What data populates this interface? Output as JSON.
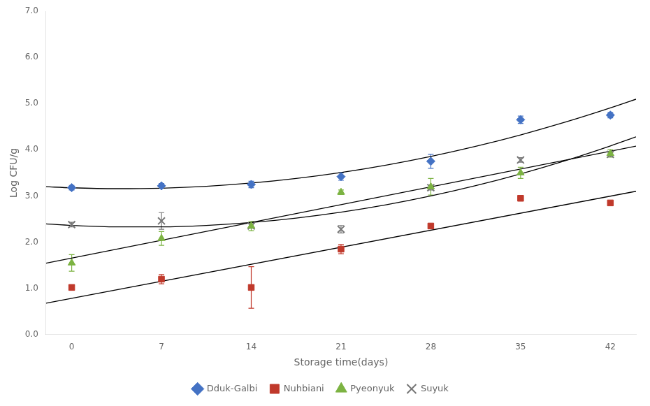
{
  "chart_data": {
    "type": "scatter",
    "xlabel": "Storage time(days)",
    "ylabel": "Log CFU/g",
    "xlim": [
      -2,
      44
    ],
    "xticks": [
      0,
      7,
      14,
      21,
      28,
      35,
      42
    ],
    "ylim": [
      0.0,
      7.0
    ],
    "yticks": [
      {
        "value": 0,
        "label": "0.0"
      },
      {
        "value": 1,
        "label": "1.0"
      },
      {
        "value": 2,
        "label": "2.0"
      },
      {
        "value": 3,
        "label": "3.0"
      },
      {
        "value": 4,
        "label": "4.0"
      },
      {
        "value": 5,
        "label": "5.0"
      },
      {
        "value": 6,
        "label": "6.0"
      },
      {
        "value": 7,
        "label": "7.0"
      }
    ],
    "grid": false,
    "legend": "bottom",
    "series": [
      {
        "type": "line",
        "color": "#000000",
        "x": [
          -2,
          0,
          3.5,
          7,
          10.5,
          14,
          17.5,
          21,
          24.5,
          28,
          31.5,
          35,
          38.5,
          42,
          44
        ],
        "values": [
          3.201,
          3.177,
          3.158,
          3.169,
          3.21,
          3.28,
          3.38,
          3.509,
          3.668,
          3.856,
          4.074,
          4.322,
          4.599,
          4.906,
          5.095
        ]
      },
      {
        "type": "line",
        "color": "#000000",
        "x": [
          -2,
          44
        ],
        "values": [
          0.68,
          3.102
        ]
      },
      {
        "type": "line",
        "color": "#000000",
        "x": [
          -2,
          44
        ],
        "values": [
          1.544,
          4.079
        ]
      },
      {
        "type": "line",
        "color": "#000000",
        "x": [
          -2,
          0,
          3.5,
          7,
          10.5,
          14,
          17.5,
          21,
          24.5,
          28,
          31.5,
          35,
          38.5,
          42,
          44
        ],
        "values": [
          2.396,
          2.363,
          2.331,
          2.331,
          2.362,
          2.426,
          2.522,
          2.649,
          2.808,
          3.0,
          3.223,
          3.478,
          3.765,
          4.084,
          4.28
        ]
      },
      {
        "name": "Dduk-Galbi",
        "color": "#4472C4",
        "marker": "diamond",
        "x": [
          0,
          7,
          14,
          21,
          28,
          35,
          42
        ],
        "values": [
          3.18,
          3.22,
          3.25,
          3.42,
          3.75,
          4.65,
          4.75
        ],
        "errors": [
          0.05,
          0.05,
          0.07,
          0.08,
          0.15,
          0.08,
          0.06
        ]
      },
      {
        "name": "Nuhbiani",
        "color": "#C0392B",
        "marker": "square",
        "x": [
          0,
          7,
          14,
          21,
          28,
          35,
          42
        ],
        "values": [
          1.02,
          1.2,
          1.02,
          1.85,
          2.35,
          2.95,
          2.85
        ],
        "errors": [
          0.05,
          0.1,
          0.45,
          0.1,
          0.05,
          0.05,
          0.05
        ]
      },
      {
        "name": "Pyeonyuk",
        "color": "#7CB342",
        "marker": "triangle",
        "x": [
          0,
          7,
          14,
          21,
          28,
          35,
          42
        ],
        "values": [
          1.55,
          2.08,
          2.35,
          3.08,
          3.2,
          3.5,
          3.92
        ],
        "errors": [
          0.18,
          0.15,
          0.1,
          0.05,
          0.18,
          0.12,
          0.08
        ]
      },
      {
        "name": "Suyuk",
        "color": "#777777",
        "marker": "x",
        "x": [
          0,
          7,
          14,
          21,
          28,
          35,
          42
        ],
        "values": [
          2.38,
          2.46,
          2.35,
          2.28,
          3.18,
          3.78,
          3.9
        ],
        "errors": [
          0.05,
          0.18,
          0.05,
          0.08,
          0.05,
          0.05,
          0.05
        ]
      }
    ]
  }
}
